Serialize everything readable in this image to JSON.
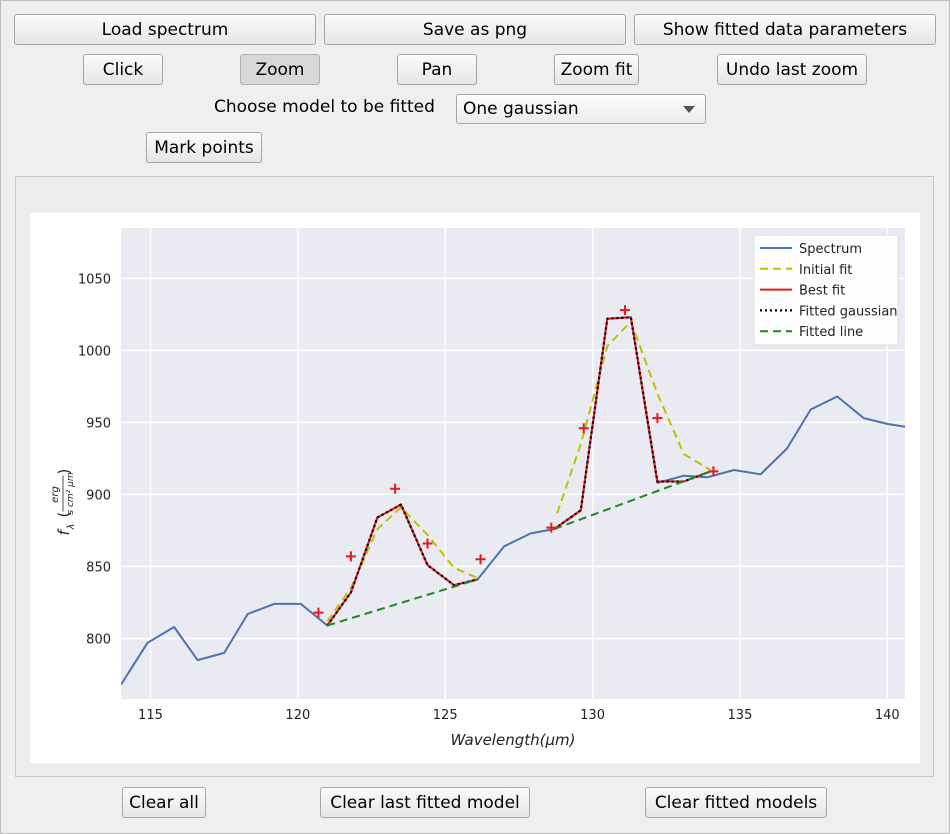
{
  "toolbar": {
    "load_spectrum": "Load spectrum",
    "save_png": "Save as png",
    "show_params": "Show fitted data parameters",
    "click": "Click",
    "zoom": "Zoom",
    "pan": "Pan",
    "zoom_fit": "Zoom fit",
    "undo_zoom": "Undo last zoom",
    "model_label": "Choose model to be fitted",
    "model_selected": "One gaussian",
    "mark_points": "Mark points"
  },
  "bottom": {
    "clear_all": "Clear all",
    "clear_last": "Clear last fitted model",
    "clear_models": "Clear fitted models"
  },
  "chart_data": {
    "type": "line",
    "xlabel": "Wavelength(μm)",
    "ylabel_main": "f",
    "ylabel_sub": "λ",
    "ylabel_num": "erg",
    "ylabel_den": "s cm² μm",
    "xlim": [
      114,
      140.6
    ],
    "ylim": [
      758,
      1085
    ],
    "xticks": [
      115,
      120,
      125,
      130,
      135,
      140
    ],
    "yticks": [
      800,
      850,
      900,
      950,
      1000,
      1050
    ],
    "grid": true,
    "legend_position": "upper right",
    "series": [
      {
        "name": "Spectrum",
        "color": "#4c72b0",
        "style": "solid",
        "x": [
          114.0,
          114.9,
          115.8,
          116.6,
          117.5,
          118.3,
          119.2,
          120.1,
          121.0,
          121.8,
          122.7,
          123.5,
          124.4,
          125.3,
          126.1,
          127.0,
          127.9,
          128.7,
          129.6,
          130.5,
          131.3,
          132.2,
          133.1,
          133.9,
          134.8,
          135.7,
          136.6,
          137.4,
          138.3,
          139.2,
          140.0,
          140.6
        ],
        "y": [
          768,
          797,
          808,
          785,
          790,
          817,
          824,
          824,
          809,
          832,
          884,
          893,
          851,
          837,
          841,
          864,
          873,
          876,
          889,
          1022,
          1023,
          908,
          913,
          912,
          917,
          914,
          932,
          959,
          968,
          953,
          949,
          947
        ]
      },
      {
        "name": "Initial fit",
        "color": "#bfbf00",
        "style": "dashed",
        "x": [
          121.0,
          121.8,
          122.7,
          123.5,
          124.4,
          125.3,
          126.1
        ],
        "y": [
          812,
          835,
          876,
          891,
          872,
          849,
          842
        ]
      },
      {
        "name": "Initial fit 2",
        "color": "#bfbf00",
        "style": "dashed",
        "x": [
          128.8,
          129.6,
          130.5,
          131.3,
          132.2,
          133.1,
          134.0
        ],
        "y": [
          887,
          935,
          1003,
          1020,
          970,
          928,
          917
        ]
      },
      {
        "name": "Best fit",
        "color": "#e41a1c",
        "style": "solid",
        "x": [
          121.0,
          121.8,
          122.7,
          123.5,
          124.4,
          125.3,
          126.1
        ],
        "y": [
          809,
          832,
          884,
          893,
          851,
          837,
          841
        ]
      },
      {
        "name": "Best fit 2",
        "color": "#e41a1c",
        "style": "solid",
        "x": [
          128.7,
          129.6,
          130.5,
          131.3,
          132.2,
          133.1,
          134.0
        ],
        "y": [
          876,
          889,
          1022,
          1023,
          909,
          909,
          916
        ]
      },
      {
        "name": "Fitted gaussian",
        "color": "#000000",
        "style": "dotted",
        "x": [
          121.0,
          121.8,
          122.7,
          123.5,
          124.4,
          125.3,
          126.1
        ],
        "y": [
          809,
          832,
          884,
          893,
          851,
          837,
          841
        ]
      },
      {
        "name": "Fitted gaussian 2",
        "color": "#000000",
        "style": "dotted",
        "x": [
          128.7,
          129.6,
          130.5,
          131.3,
          132.2,
          133.1,
          134.0
        ],
        "y": [
          876,
          889,
          1022,
          1023,
          909,
          909,
          916
        ]
      },
      {
        "name": "Fitted line",
        "color": "#1a8a1a",
        "style": "dashed",
        "x": [
          121.0,
          126.1
        ],
        "y": [
          809,
          841
        ]
      },
      {
        "name": "Fitted line 2",
        "color": "#1a8a1a",
        "style": "dashed",
        "x": [
          128.7,
          134.0
        ],
        "y": [
          876,
          916
        ]
      }
    ],
    "marked_points": {
      "color": "#e41a1c",
      "x": [
        120.7,
        121.8,
        123.3,
        124.4,
        126.2,
        128.6,
        129.7,
        131.1,
        132.2,
        134.1
      ],
      "y": [
        818,
        857,
        904,
        866,
        855,
        877,
        946,
        1028,
        953,
        916
      ]
    },
    "legend": [
      {
        "label": "Spectrum",
        "color": "#4c72b0",
        "style": "solid"
      },
      {
        "label": "Initial fit",
        "color": "#bfbf00",
        "style": "dashed"
      },
      {
        "label": "Best fit",
        "color": "#e41a1c",
        "style": "solid"
      },
      {
        "label": "Fitted gaussian",
        "color": "#000000",
        "style": "dotted"
      },
      {
        "label": "Fitted line",
        "color": "#1a8a1a",
        "style": "dashed"
      }
    ]
  }
}
